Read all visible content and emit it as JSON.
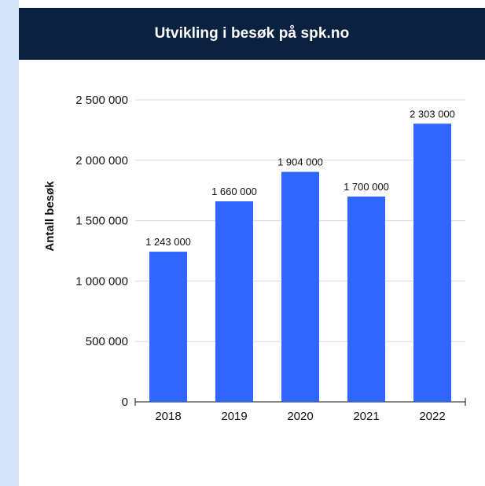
{
  "page": {
    "title": "Utvikling i besøk på spk.no"
  },
  "colors": {
    "banner": "#0a2140",
    "bar": "#2f66ff",
    "side_strip": "#d4e4fb",
    "grid": "#d9d9d9"
  },
  "chart_data": {
    "type": "bar",
    "title": "Utvikling i besøk på spk.no",
    "xlabel": "",
    "ylabel": "Antall besøk",
    "categories": [
      "2018",
      "2019",
      "2020",
      "2021",
      "2022"
    ],
    "values": [
      1243000,
      1660000,
      1904000,
      1700000,
      2303000
    ],
    "value_labels": [
      "1 243 000",
      "1 660 000",
      "1 904 000",
      "1 700 000",
      "2 303 000"
    ],
    "ylim": [
      0,
      2500000
    ],
    "yticks": [
      0,
      500000,
      1000000,
      1500000,
      2000000,
      2500000
    ],
    "ytick_labels": [
      "0",
      "500 000",
      "1 000 000",
      "1 500 000",
      "2 000 000",
      "2 500 000"
    ],
    "grid": true,
    "legend": "none"
  }
}
